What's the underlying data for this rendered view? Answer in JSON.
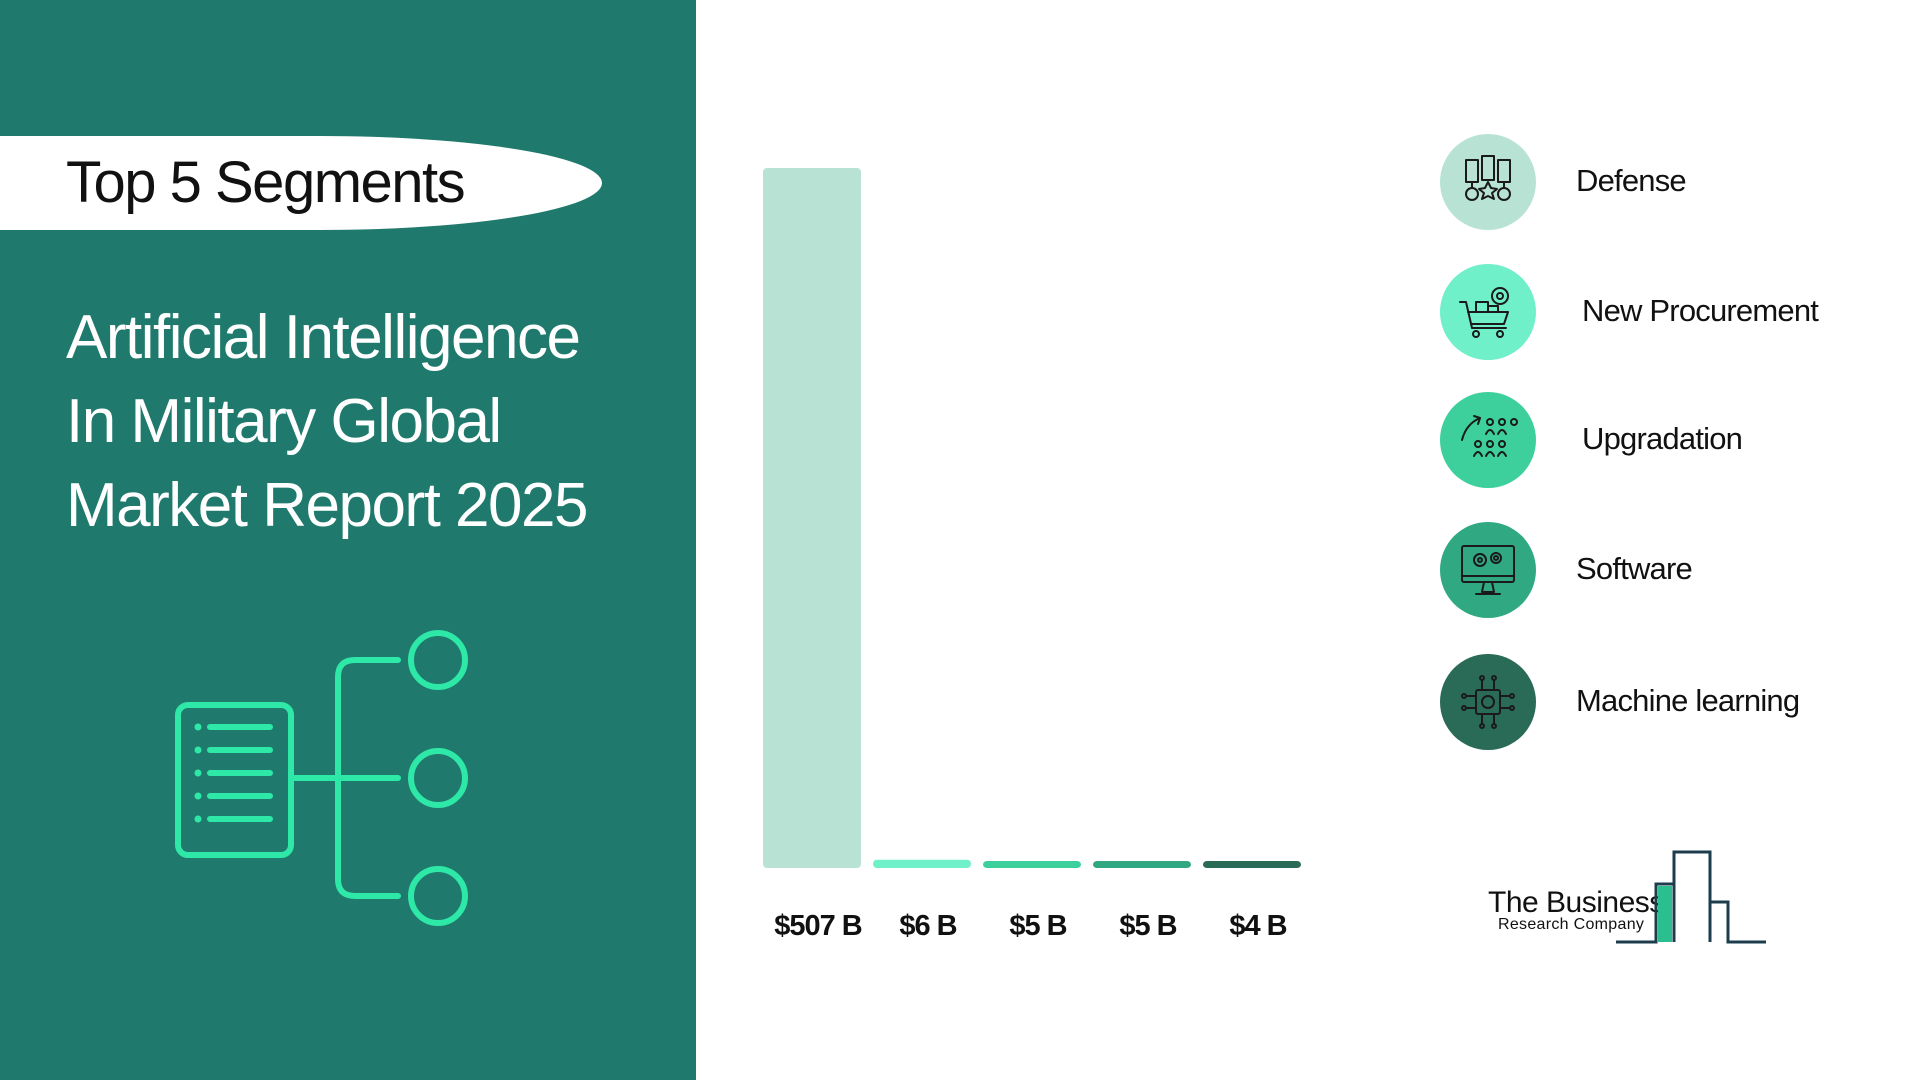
{
  "header": {
    "pill_label": "Top 5 Segments",
    "title_lines": [
      "Artificial Intelligence",
      "In Military Global",
      "Market Report 2025"
    ]
  },
  "colors": {
    "panel_bg": "#1f7a6d",
    "accent": "#2ee8a8",
    "bar_defense": "#b8e3d4",
    "bar_procurement": "#6ff0c8",
    "bar_upgradation": "#3ed09c",
    "bar_software": "#30a982",
    "bar_ml": "#2a6b57"
  },
  "chart_data": {
    "type": "bar",
    "categories": [
      "Defense",
      "New Procurement",
      "Upgradation",
      "Software",
      "Machine learning"
    ],
    "values": [
      507,
      6,
      5,
      5,
      4
    ],
    "data_labels": [
      "$507 B",
      "$6 B",
      "$5 B",
      "$5 B",
      "$4 B"
    ],
    "colors": [
      "#b8e3d4",
      "#6ff0c8",
      "#3ed09c",
      "#30a982",
      "#2a6b57"
    ],
    "ylim": [
      0,
      507
    ],
    "grid": false,
    "legend_position": "right"
  },
  "legend": {
    "items": [
      {
        "label": "Defense",
        "icon": "medals-icon",
        "color": "#b8e3d4"
      },
      {
        "label": "New Procurement",
        "icon": "shopping-cart-gear-icon",
        "color": "#6ff0c8"
      },
      {
        "label": "Upgradation",
        "icon": "growth-people-icon",
        "color": "#3ed09c"
      },
      {
        "label": "Software",
        "icon": "monitor-gears-icon",
        "color": "#30a982"
      },
      {
        "label": "Machine learning",
        "icon": "ai-chip-icon",
        "color": "#2a6b57"
      }
    ]
  },
  "logo": {
    "name": "The Business",
    "subtitle": "Research Company"
  }
}
